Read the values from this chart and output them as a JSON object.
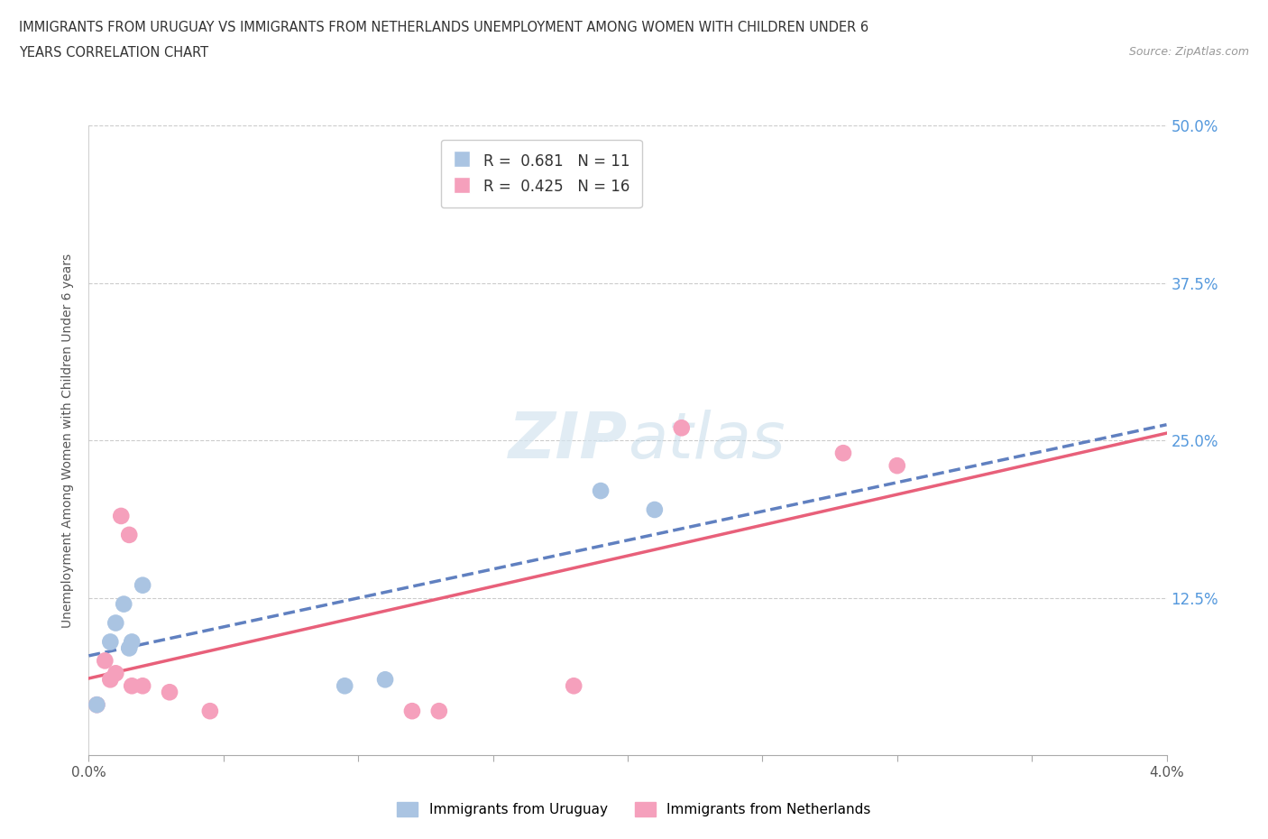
{
  "title_line1": "IMMIGRANTS FROM URUGUAY VS IMMIGRANTS FROM NETHERLANDS UNEMPLOYMENT AMONG WOMEN WITH CHILDREN UNDER 6",
  "title_line2": "YEARS CORRELATION CHART",
  "source": "Source: ZipAtlas.com",
  "ylabel": "Unemployment Among Women with Children Under 6 years",
  "xlim": [
    0.0,
    0.04
  ],
  "ylim": [
    0.0,
    0.5
  ],
  "xticks": [
    0.0,
    0.005,
    0.01,
    0.015,
    0.02,
    0.025,
    0.03,
    0.035,
    0.04
  ],
  "yticks": [
    0.0,
    0.125,
    0.25,
    0.375,
    0.5
  ],
  "xticklabels": [
    "0.0%",
    "",
    "",
    "",
    "",
    "",
    "",
    "",
    "4.0%"
  ],
  "yticklabels": [
    "",
    "12.5%",
    "25.0%",
    "37.5%",
    "50.0%"
  ],
  "uruguay_color": "#aac4e2",
  "netherlands_color": "#f5a0bc",
  "uruguay_line_color": "#6080c0",
  "netherlands_line_color": "#e8607a",
  "uruguay_x": [
    0.0003,
    0.0008,
    0.001,
    0.0013,
    0.0015,
    0.0016,
    0.002,
    0.0095,
    0.011,
    0.019,
    0.021
  ],
  "uruguay_y": [
    0.04,
    0.09,
    0.105,
    0.12,
    0.085,
    0.09,
    0.135,
    0.055,
    0.06,
    0.21,
    0.195
  ],
  "netherlands_x": [
    0.0003,
    0.0006,
    0.0008,
    0.001,
    0.0012,
    0.0015,
    0.0016,
    0.002,
    0.003,
    0.0045,
    0.012,
    0.013,
    0.018,
    0.022,
    0.028,
    0.03
  ],
  "netherlands_y": [
    0.04,
    0.075,
    0.06,
    0.065,
    0.19,
    0.175,
    0.055,
    0.055,
    0.05,
    0.035,
    0.035,
    0.035,
    0.055,
    0.26,
    0.24,
    0.23
  ]
}
